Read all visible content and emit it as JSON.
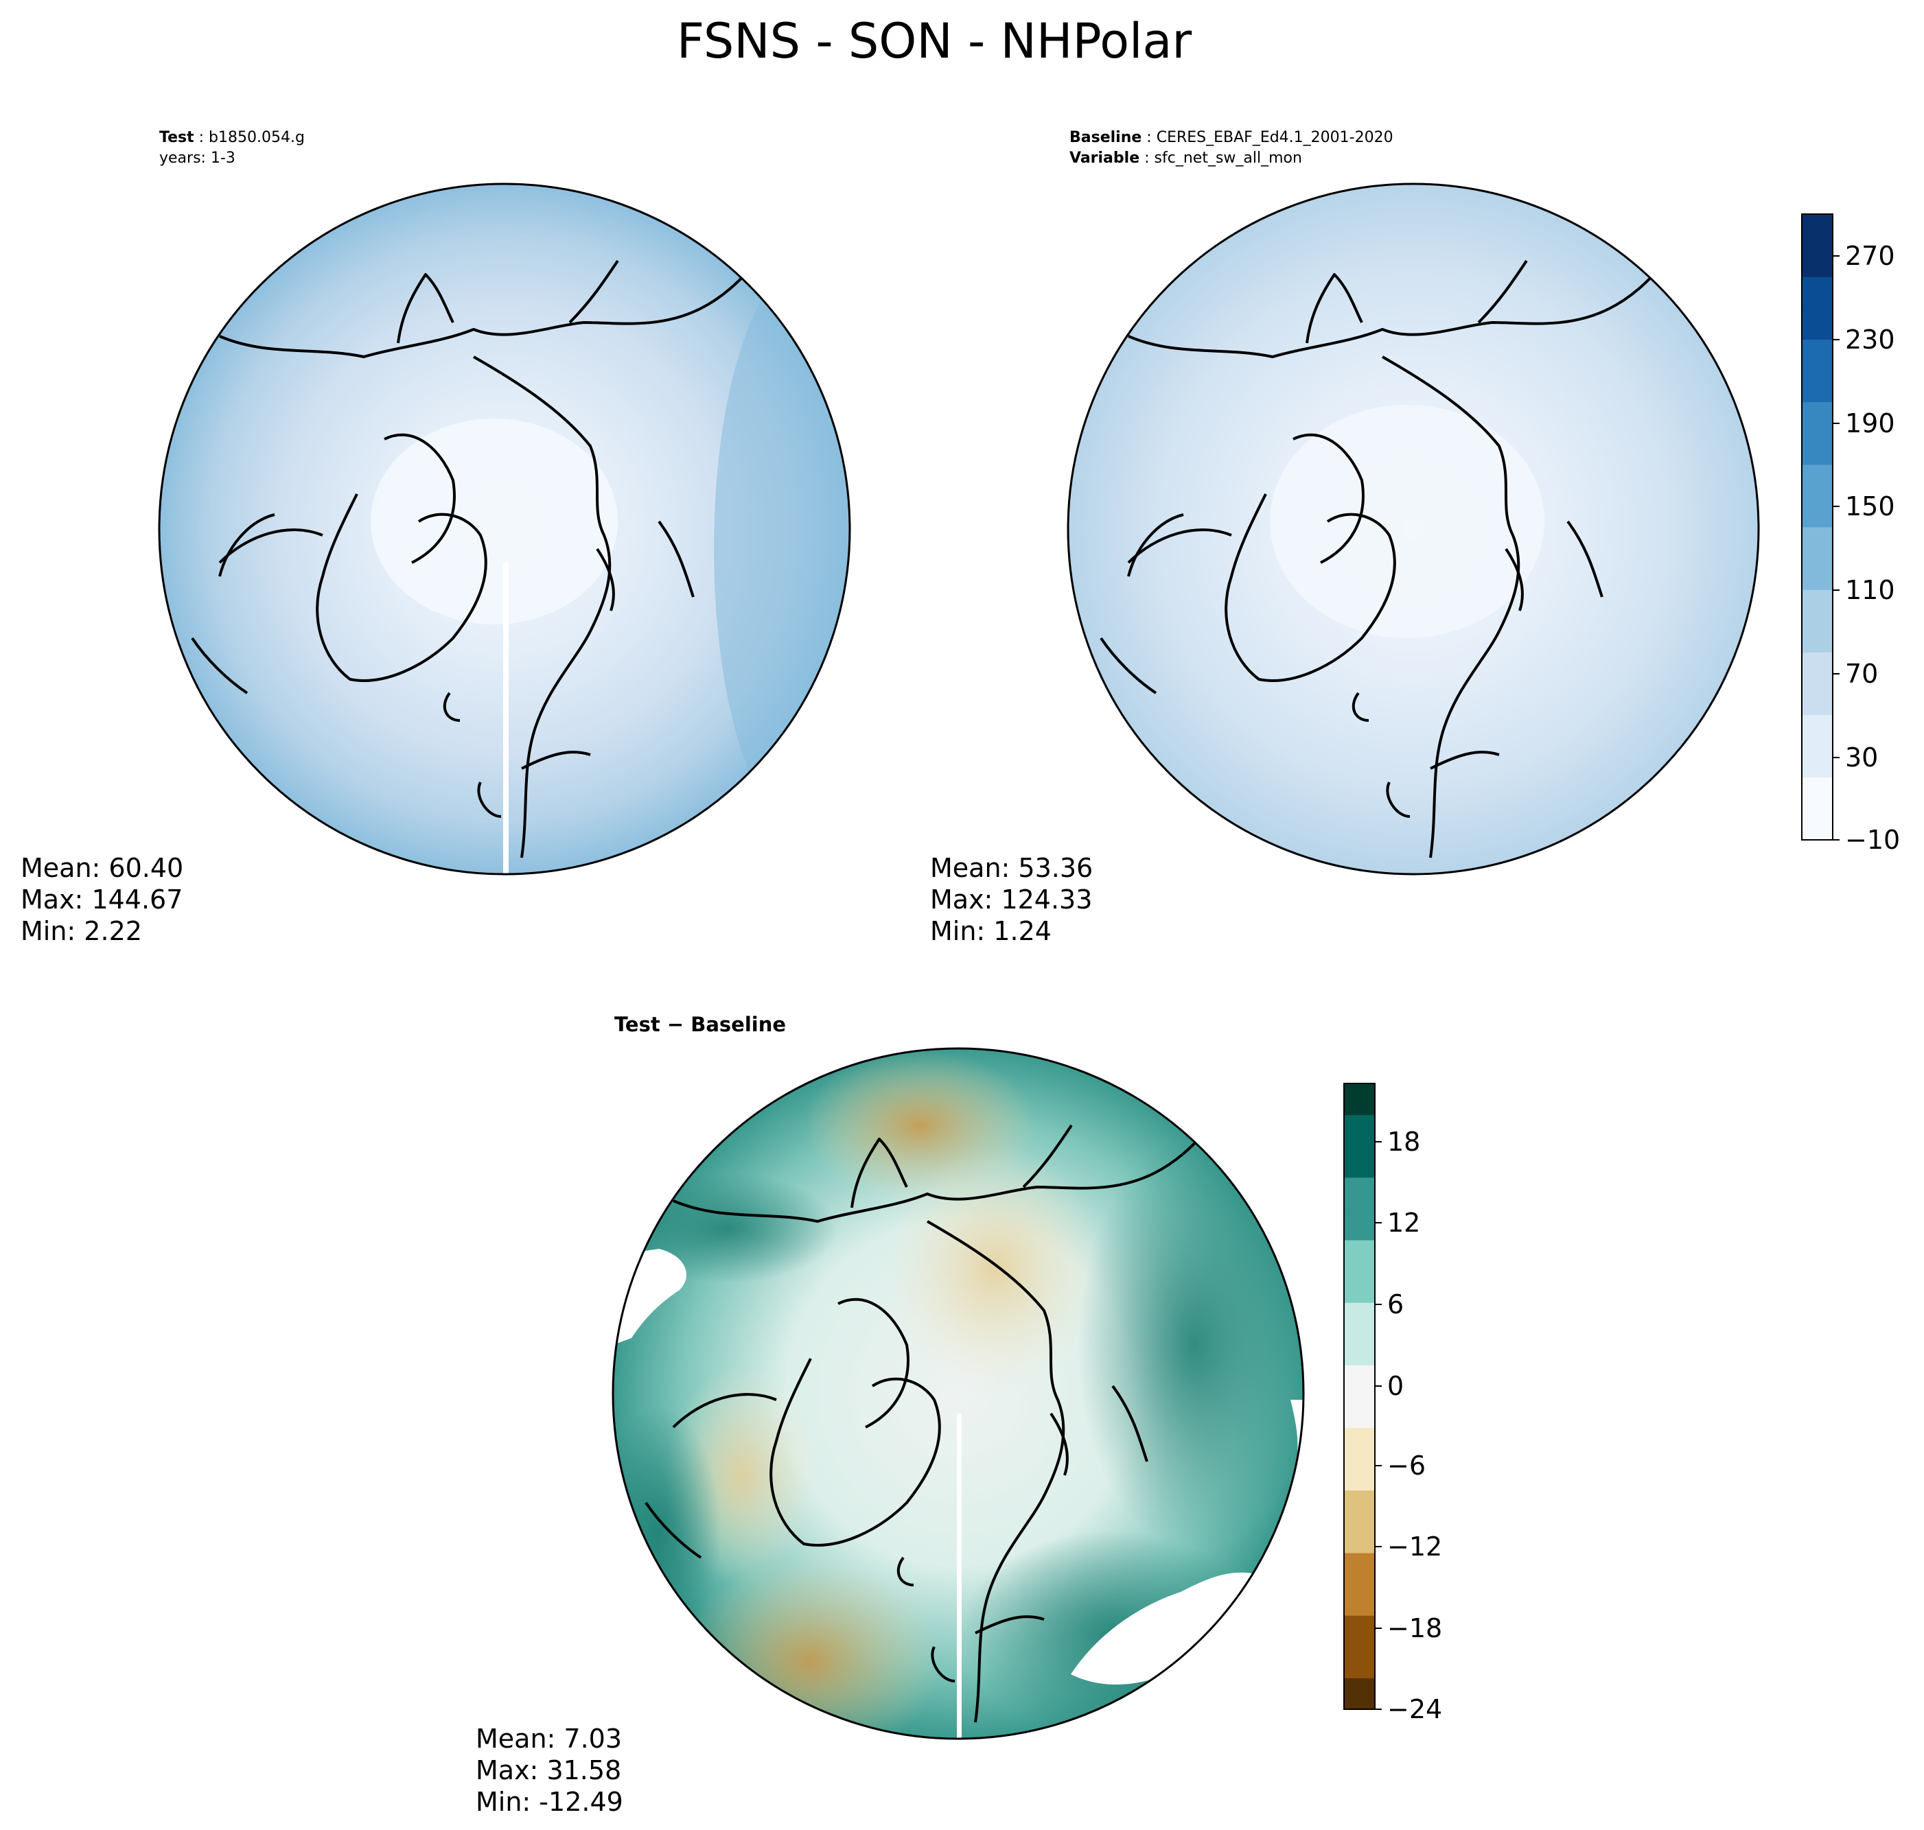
{
  "title": "FSNS - SON - NHPolar",
  "panels": {
    "test": {
      "label_key": "Test",
      "label_value": "b1850.054.g",
      "subline": "years: 1-3",
      "stats": {
        "mean": "Mean: 60.40",
        "max": "Max: 144.67",
        "min": "Min:  2.22"
      }
    },
    "baseline": {
      "label_key": "Baseline",
      "label_value": "CERES_EBAF_Ed4.1_2001-2020",
      "var_key": "Variable",
      "var_value": "sfc_net_sw_all_mon",
      "stats": {
        "mean": "Mean: 53.36",
        "max": "Max: 124.33",
        "min": "Min:  1.24"
      }
    },
    "diff": {
      "label": "Test − Baseline",
      "stats": {
        "mean": "Mean:  7.03",
        "max": "Max: 31.58",
        "min": "Min: -12.49"
      }
    }
  },
  "colorbars": {
    "field": {
      "ticks": [
        "270",
        "230",
        "190",
        "150",
        "110",
        "70",
        "30",
        "−10"
      ],
      "colors": [
        "#f7fbff",
        "#e1edf8",
        "#cadef0",
        "#abcfe5",
        "#82badb",
        "#59a1cf",
        "#3787c0",
        "#1c6aaf",
        "#0b4d94",
        "#08306b"
      ]
    },
    "diff": {
      "ticks": [
        "18",
        "12",
        "6",
        "0",
        "−6",
        "−12",
        "−18",
        "−24"
      ],
      "colors": [
        "#543005",
        "#8c510a",
        "#bf812d",
        "#dfc27d",
        "#f6e8c3",
        "#f5f5f5",
        "#c7eae5",
        "#80cdc1",
        "#35978f",
        "#01665e",
        "#003c30"
      ]
    }
  },
  "chart_data": [
    {
      "type": "heatmap",
      "title": "Test: b1850.054.g",
      "projection": "north polar stereographic",
      "colormap": "Blues",
      "levels_range": [
        -10,
        290
      ],
      "stats": {
        "mean": 60.4,
        "max": 144.67,
        "min": 2.22
      }
    },
    {
      "type": "heatmap",
      "title": "Baseline: CERES_EBAF_Ed4.1_2001-2020",
      "projection": "north polar stereographic",
      "colormap": "Blues",
      "levels_range": [
        -10,
        290
      ],
      "colorbar_ticks": [
        -10,
        30,
        70,
        110,
        150,
        190,
        230,
        270
      ],
      "stats": {
        "mean": 53.36,
        "max": 124.33,
        "min": 1.24
      }
    },
    {
      "type": "heatmap",
      "title": "Test − Baseline",
      "projection": "north polar stereographic",
      "colormap": "BrBG",
      "levels_range": [
        -24,
        22
      ],
      "colorbar_ticks": [
        -24,
        -18,
        -12,
        -6,
        0,
        6,
        12,
        18
      ],
      "stats": {
        "mean": 7.03,
        "max": 31.58,
        "min": -12.49
      }
    }
  ]
}
